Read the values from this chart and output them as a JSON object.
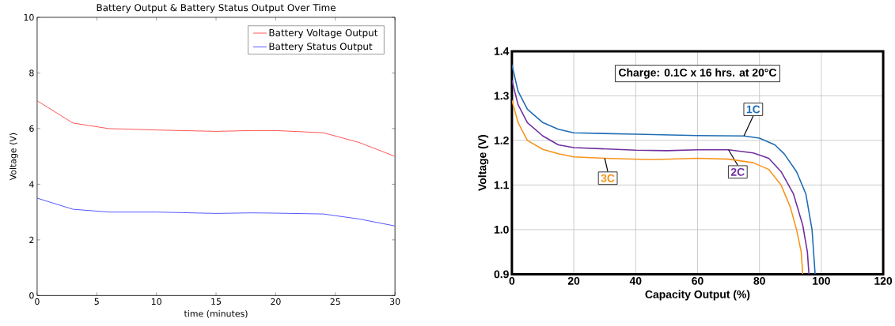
{
  "chart_data": [
    {
      "type": "line",
      "title": "Battery Output & Battery Status Output Over Time",
      "xlabel": "time (minutes)",
      "ylabel": "Voltage (V)",
      "x": [
        0,
        3,
        6,
        10,
        15,
        18,
        20,
        24,
        27,
        30
      ],
      "series": [
        {
          "name": "Battery Voltage Output",
          "color": "#ff5555",
          "values": [
            7.0,
            6.2,
            6.0,
            5.95,
            5.9,
            5.93,
            5.93,
            5.85,
            5.5,
            5.0
          ]
        },
        {
          "name": "Battery Status Output",
          "color": "#5555ff",
          "values": [
            3.5,
            3.1,
            3.0,
            3.0,
            2.95,
            2.97,
            2.96,
            2.93,
            2.75,
            2.5
          ]
        }
      ],
      "xlim": [
        0,
        30
      ],
      "ylim": [
        0,
        10
      ],
      "xticks": [
        0,
        5,
        10,
        15,
        20,
        25,
        30
      ],
      "yticks": [
        0,
        2,
        4,
        6,
        8,
        10
      ],
      "legend": "top right",
      "grid": false
    },
    {
      "type": "line",
      "xlabel": "Capacity Output (%)",
      "ylabel": "Voltage (V)",
      "series": [
        {
          "name": "1C",
          "color": "#1f6db5",
          "x": [
            0,
            2,
            5,
            10,
            15,
            20,
            40,
            60,
            75,
            80,
            85,
            88,
            92,
            95,
            97,
            98
          ],
          "values": [
            1.37,
            1.31,
            1.27,
            1.24,
            1.225,
            1.217,
            1.214,
            1.211,
            1.21,
            1.205,
            1.19,
            1.17,
            1.13,
            1.08,
            1.0,
            0.9
          ]
        },
        {
          "name": "2C",
          "color": "#7030a0",
          "x": [
            0,
            2,
            5,
            10,
            15,
            20,
            40,
            50,
            60,
            70,
            78,
            83,
            87,
            91,
            94,
            95.5,
            96
          ],
          "values": [
            1.335,
            1.28,
            1.24,
            1.21,
            1.19,
            1.184,
            1.178,
            1.177,
            1.179,
            1.179,
            1.172,
            1.16,
            1.13,
            1.08,
            1.01,
            0.95,
            0.9
          ]
        },
        {
          "name": "3C",
          "color": "#f7941d",
          "x": [
            0,
            2,
            5,
            10,
            15,
            20,
            30,
            45,
            60,
            70,
            78,
            83,
            87,
            90,
            92,
            93.5,
            94
          ],
          "values": [
            1.29,
            1.24,
            1.2,
            1.18,
            1.17,
            1.163,
            1.16,
            1.157,
            1.16,
            1.158,
            1.15,
            1.135,
            1.1,
            1.05,
            1.0,
            0.95,
            0.9
          ]
        }
      ],
      "annotations": [
        "Charge: 0.1C x 16 hrs. at 20°C"
      ],
      "xlim": [
        0,
        120
      ],
      "ylim": [
        0.9,
        1.4
      ],
      "xticks": [
        0,
        20,
        40,
        60,
        80,
        100,
        120
      ],
      "yticks": [
        0.9,
        {
          "value": 1.0,
          "label": "1.0"
        },
        1.1,
        1.2,
        1.3,
        1.4
      ],
      "grid": true
    }
  ]
}
